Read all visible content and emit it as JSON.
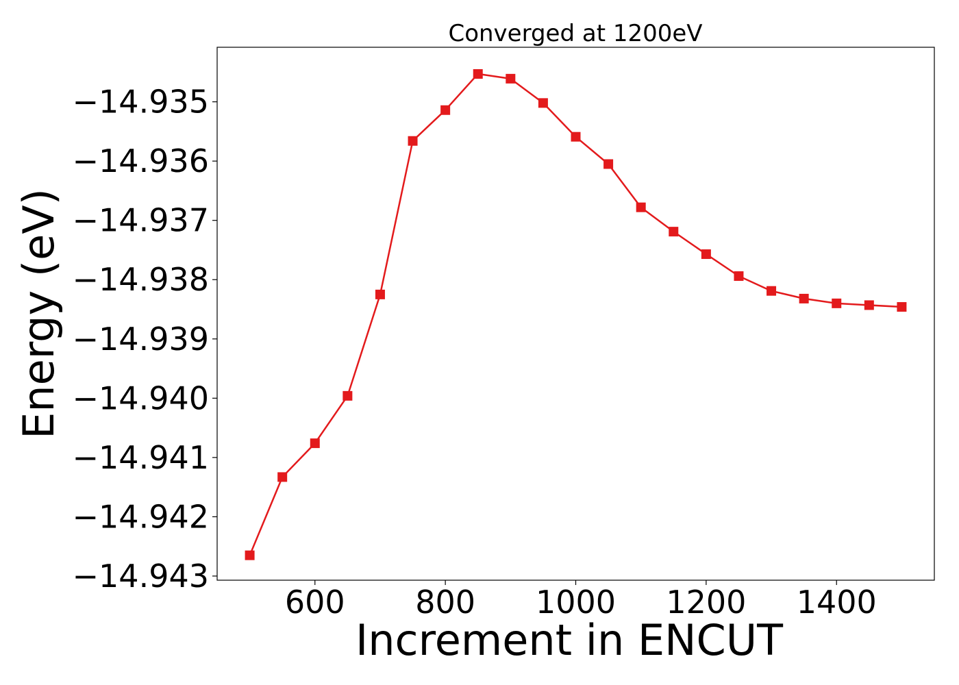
{
  "chart_data": {
    "type": "line",
    "title": "Converged at 1200eV",
    "xlabel": "Increment in ENCUT",
    "ylabel": "Energy (eV)",
    "xlim": [
      450,
      1550
    ],
    "ylim": [
      -14.94307,
      -14.93408
    ],
    "x_ticks": [
      600,
      800,
      1000,
      1200,
      1400
    ],
    "x_tick_labels": [
      "600",
      "800",
      "1000",
      "1200",
      "1400"
    ],
    "y_ticks": [
      -14.935,
      -14.936,
      -14.937,
      -14.938,
      -14.939,
      -14.94,
      -14.941,
      -14.942,
      -14.943
    ],
    "y_tick_labels": [
      "−14.935",
      "−14.936",
      "−14.937",
      "−14.938",
      "−14.939",
      "−14.940",
      "−14.941",
      "−14.942",
      "−14.943"
    ],
    "grid": false,
    "series": [
      {
        "color": "#e31a1c",
        "marker": "square",
        "x": [
          500,
          550,
          600,
          650,
          700,
          750,
          800,
          850,
          900,
          950,
          1000,
          1050,
          1100,
          1150,
          1200,
          1250,
          1300,
          1350,
          1400,
          1450,
          1500
        ],
        "y": [
          -14.94265,
          -14.94133,
          -14.94076,
          -14.93996,
          -14.93825,
          -14.93566,
          -14.93514,
          -14.93453,
          -14.93461,
          -14.93502,
          -14.93559,
          -14.93605,
          -14.93678,
          -14.93719,
          -14.93757,
          -14.93794,
          -14.93819,
          -14.93832,
          -14.9384,
          -14.93843,
          -14.93846
        ]
      }
    ]
  }
}
